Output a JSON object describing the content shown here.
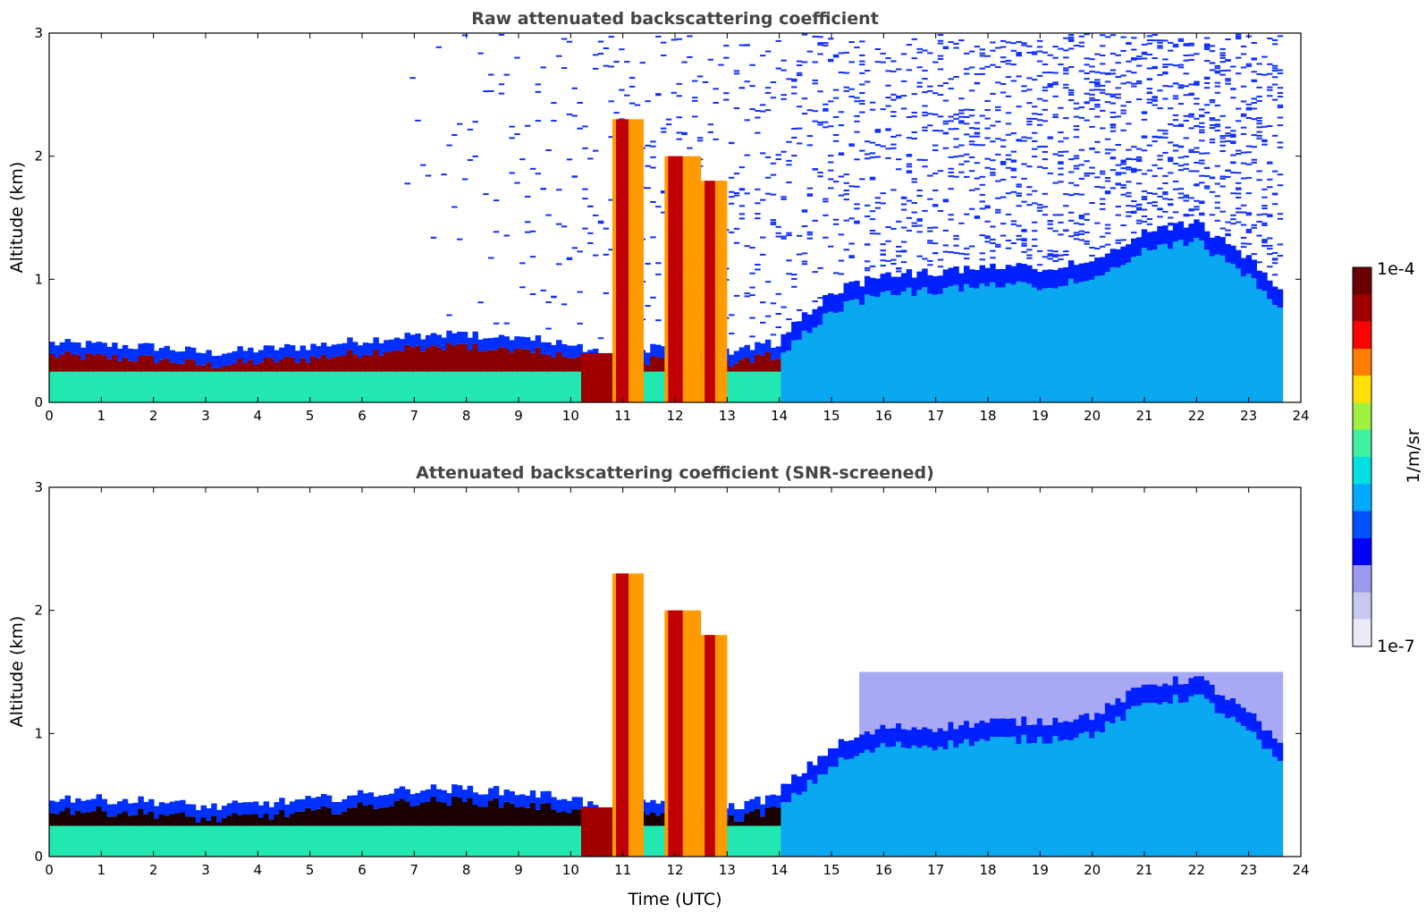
{
  "chart_data": [
    {
      "type": "heatmap",
      "title": "Raw attenuated backscattering coefficient",
      "xlabel": "",
      "ylabel": "Altitude (km)",
      "xlim": [
        0,
        24
      ],
      "ylim": [
        0,
        3
      ],
      "xticks": [
        "0",
        "1",
        "2",
        "3",
        "4",
        "5",
        "6",
        "7",
        "8",
        "9",
        "10",
        "11",
        "12",
        "13",
        "14",
        "15",
        "16",
        "17",
        "18",
        "19",
        "20",
        "21",
        "22",
        "23",
        "24"
      ],
      "yticks": [
        "0",
        "1",
        "2",
        "3"
      ],
      "data_end_hour": 23.65,
      "description_of_field": {
        "boundary_layer_top_km": [
          [
            0,
            0.38
          ],
          [
            2,
            0.35
          ],
          [
            3,
            0.3
          ],
          [
            5,
            0.36
          ],
          [
            7,
            0.45
          ],
          [
            8,
            0.45
          ],
          [
            9,
            0.42
          ],
          [
            10,
            0.38
          ],
          [
            10.7,
            0.25
          ],
          [
            11.5,
            0.35
          ],
          [
            13,
            0.3
          ],
          [
            14,
            0.4
          ],
          [
            15,
            0.75
          ],
          [
            16,
            0.9
          ],
          [
            17,
            0.9
          ],
          [
            18,
            0.95
          ],
          [
            19,
            0.95
          ],
          [
            20,
            1.0
          ],
          [
            21,
            1.25
          ],
          [
            22,
            1.3
          ],
          [
            23,
            1.0
          ],
          [
            23.65,
            0.7
          ]
        ],
        "cloud_columns_hours": [
          [
            10.8,
            11.4,
            2.3
          ],
          [
            11.8,
            12.5,
            2.0
          ],
          [
            12.5,
            13.0,
            1.8
          ]
        ]
      }
    },
    {
      "type": "heatmap",
      "title": "Attenuated backscattering coefficient (SNR-screened)",
      "xlabel": "Time (UTC)",
      "ylabel": "Altitude (km)",
      "xlim": [
        0,
        24
      ],
      "ylim": [
        0,
        3
      ],
      "xticks": [
        "0",
        "1",
        "2",
        "3",
        "4",
        "5",
        "6",
        "7",
        "8",
        "9",
        "10",
        "11",
        "12",
        "13",
        "14",
        "15",
        "16",
        "17",
        "18",
        "19",
        "20",
        "21",
        "22",
        "23",
        "24"
      ],
      "yticks": [
        "0",
        "1",
        "2",
        "3"
      ],
      "data_end_hour": 23.65
    }
  ],
  "colorbar": {
    "label": "1/m/sr",
    "max_label": "1e-4",
    "min_label": "1e-7",
    "colormap": [
      "#ebebf7",
      "#c8c8f0",
      "#9a9aee",
      "#0000ff",
      "#0050ff",
      "#00aaff",
      "#00e0e0",
      "#40f0a0",
      "#a0f040",
      "#ffe000",
      "#ff8000",
      "#ff0000",
      "#a00000",
      "#6a0000"
    ]
  }
}
